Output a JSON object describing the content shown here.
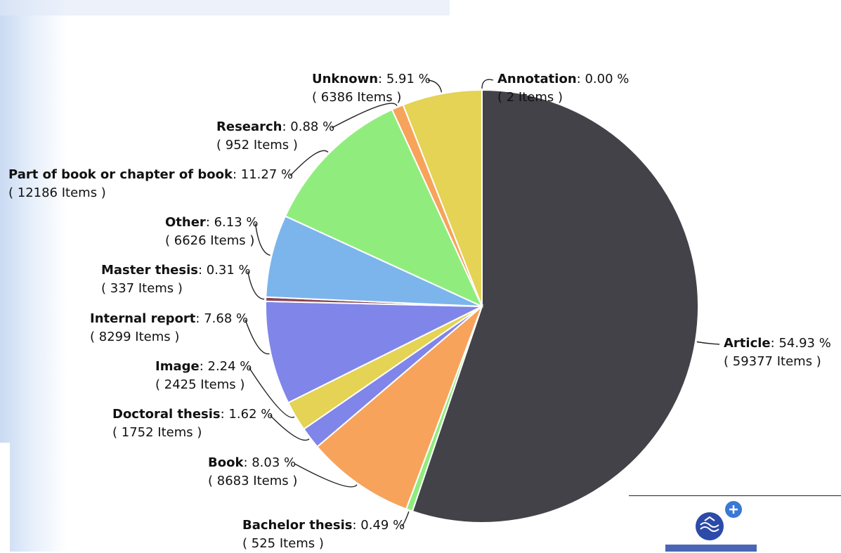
{
  "chart_data": {
    "type": "pie",
    "title": "",
    "slices": [
      {
        "label": "Article",
        "percent_text": "54.93 %",
        "items_text": "( 59377 Items )",
        "value": 59377,
        "color": "#434248"
      },
      {
        "label": "Bachelor thesis",
        "percent_text": "0.49 %",
        "items_text": "( 525 Items )",
        "value": 525,
        "color": "#90ed7d"
      },
      {
        "label": "Book",
        "percent_text": "8.03 %",
        "items_text": "( 8683 Items )",
        "value": 8683,
        "color": "#f7a35c"
      },
      {
        "label": "Doctoral thesis",
        "percent_text": "1.62 %",
        "items_text": "( 1752 Items )",
        "value": 1752,
        "color": "#8085e9"
      },
      {
        "label": "Image",
        "percent_text": "2.24 %",
        "items_text": "( 2425 Items )",
        "value": 2425,
        "color": "#e4d354"
      },
      {
        "label": "Internal report",
        "percent_text": "7.68 %",
        "items_text": "( 8299 Items )",
        "value": 8299,
        "color": "#8085e9"
      },
      {
        "label": "Master thesis",
        "percent_text": "0.31 %",
        "items_text": "( 337 Items )",
        "value": 337,
        "color": "#8b4553"
      },
      {
        "label": "Other",
        "percent_text": "6.13 %",
        "items_text": "( 6626 Items )",
        "value": 6626,
        "color": "#7cb5ec"
      },
      {
        "label": "Part of book or chapter of book",
        "percent_text": "11.27 %",
        "items_text": "( 12186 Items )",
        "value": 12186,
        "color": "#90ed7d"
      },
      {
        "label": "Research",
        "percent_text": "0.88 %",
        "items_text": "( 952 Items )",
        "value": 952,
        "color": "#f7a35c"
      },
      {
        "label": "Unknown",
        "percent_text": "5.91 %",
        "items_text": "( 6386 Items )",
        "value": 6386,
        "color": "#e4d354"
      },
      {
        "label": "Annotation",
        "percent_text": "0.00 %",
        "items_text": "( 2 Items )",
        "value": 2,
        "color": "#8b4553"
      }
    ]
  },
  "logo": {
    "name": "openaire-plus-logo"
  }
}
